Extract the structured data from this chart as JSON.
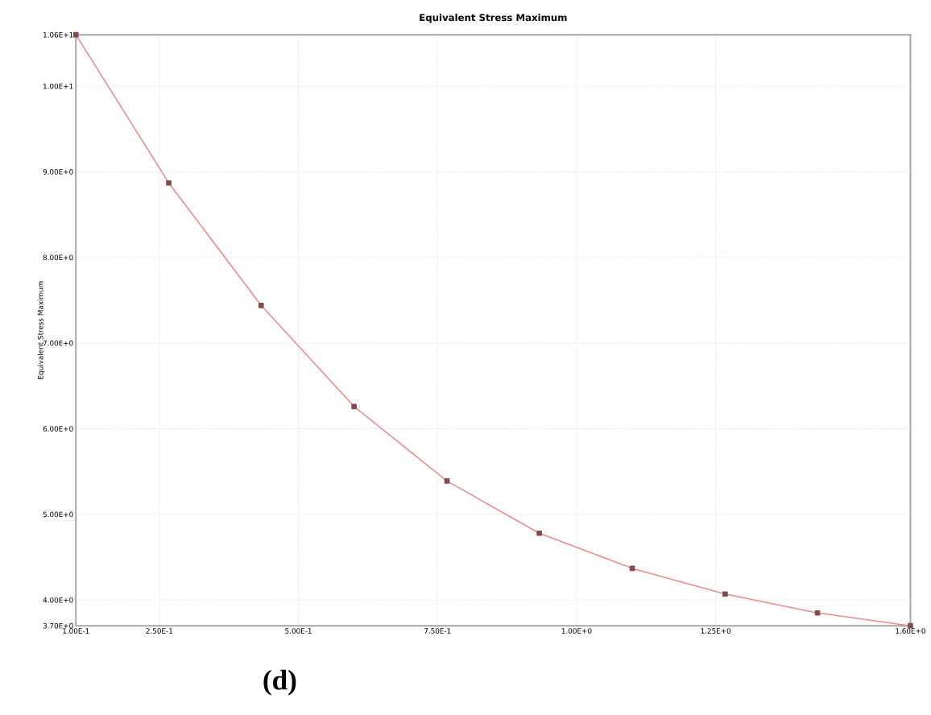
{
  "chart_data": {
    "type": "line",
    "title": "Equivalent Stress Maximum",
    "ylabel": "Equivalent Stress Maximum",
    "annotations": [
      "(d)"
    ],
    "x": [
      0.1,
      0.267,
      0.433,
      0.6,
      0.767,
      0.933,
      1.1,
      1.267,
      1.433,
      1.6
    ],
    "series": [
      {
        "color": "#ec8a8a",
        "values": [
          10.6,
          8.87,
          7.44,
          6.26,
          5.39,
          4.78,
          4.37,
          4.07,
          3.85,
          3.7
        ]
      }
    ],
    "xlim": [
      0.1,
      1.6
    ],
    "ylim": [
      3.7,
      10.6
    ],
    "xticks": [
      {
        "value": 0.1,
        "label": "1.00E-1"
      },
      {
        "value": 0.25,
        "label": "2.50E-1"
      },
      {
        "value": 0.5,
        "label": "5.00E-1"
      },
      {
        "value": 0.75,
        "label": "7.50E-1"
      },
      {
        "value": 1.0,
        "label": "1.00E+0"
      },
      {
        "value": 1.25,
        "label": "1.25E+0"
      },
      {
        "value": 1.6,
        "label": "1.60E+0"
      }
    ],
    "yticks": [
      {
        "value": 3.7,
        "label": "3.70E+0"
      },
      {
        "value": 4,
        "label": "4.00E+0"
      },
      {
        "value": 5,
        "label": "5.00E+0"
      },
      {
        "value": 6,
        "label": "6.00E+0"
      },
      {
        "value": 7,
        "label": "7.00E+0"
      },
      {
        "value": 8,
        "label": "8.00E+0"
      },
      {
        "value": 9,
        "label": "9.00E+0"
      },
      {
        "value": 10,
        "label": "1.00E+1"
      },
      {
        "value": 10.6,
        "label": "1.06E+1"
      }
    ],
    "grid": true,
    "marker": "square",
    "line_style": "solid"
  }
}
